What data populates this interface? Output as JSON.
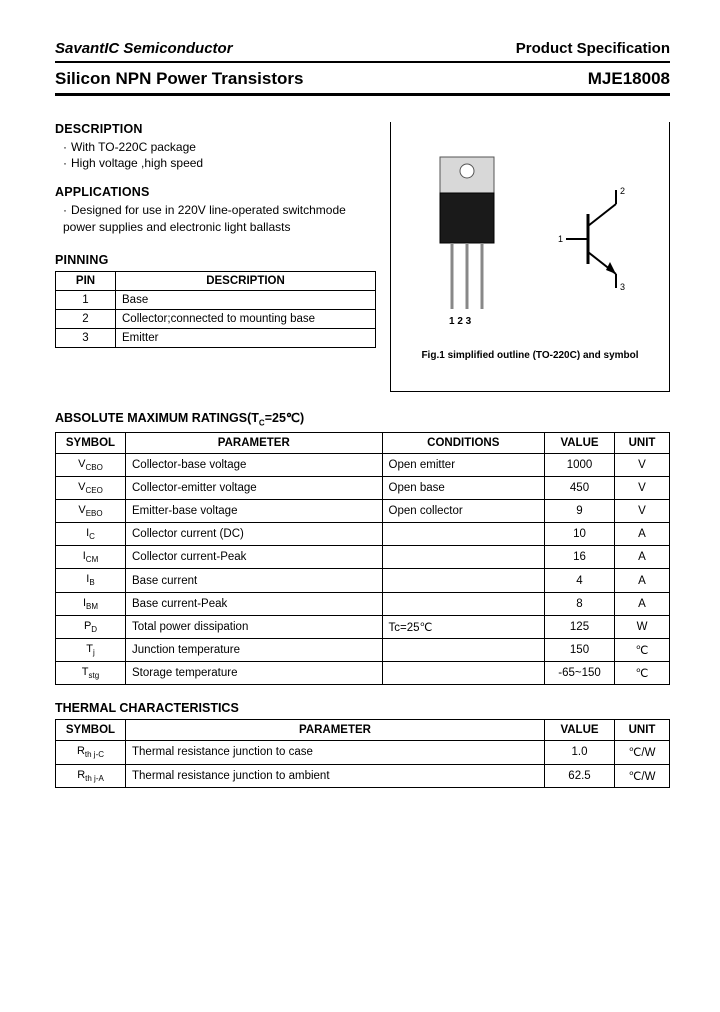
{
  "header": {
    "company": "SavantIC Semiconductor",
    "product_spec": "Product Specification",
    "title": "Silicon NPN Power Transistors",
    "part_number": "MJE18008"
  },
  "description": {
    "heading": "DESCRIPTION",
    "lines": [
      "With TO-220C package",
      "High voltage ,high speed"
    ]
  },
  "applications": {
    "heading": "APPLICATIONS",
    "text": "Designed for use in 220V line-operated switchmode power supplies and electronic light ballasts"
  },
  "pinning": {
    "heading": "PINNING",
    "col_pin": "PIN",
    "col_desc": "DESCRIPTION",
    "rows": [
      {
        "pin": "1",
        "desc": "Base"
      },
      {
        "pin": "2",
        "desc": "Collector;connected to mounting base"
      },
      {
        "pin": "3",
        "desc": "Emitter"
      }
    ]
  },
  "figure": {
    "pins_label": "1  2  3",
    "caption": "Fig.1 simplified outline (TO-220C) and symbol",
    "symbol_pins": {
      "p1": "1",
      "p2": "2",
      "p3": "3"
    }
  },
  "ratings": {
    "heading": "ABSOLUTE MAXIMUM RATINGS(T",
    "heading_sub": "C",
    "heading_tail": "=25℃)",
    "cols": {
      "symbol": "SYMBOL",
      "param": "PARAMETER",
      "cond": "CONDITIONS",
      "value": "VALUE",
      "unit": "UNIT"
    },
    "rows": [
      {
        "sym": "V",
        "sub": "CBO",
        "param": "Collector-base voltage",
        "cond": "Open emitter",
        "value": "1000",
        "unit": "V"
      },
      {
        "sym": "V",
        "sub": "CEO",
        "param": "Collector-emitter voltage",
        "cond": "Open base",
        "value": "450",
        "unit": "V"
      },
      {
        "sym": "V",
        "sub": "EBO",
        "param": "Emitter-base voltage",
        "cond": "Open collector",
        "value": "9",
        "unit": "V"
      },
      {
        "sym": "I",
        "sub": "C",
        "param": "Collector current (DC)",
        "cond": "",
        "value": "10",
        "unit": "A"
      },
      {
        "sym": "I",
        "sub": "CM",
        "param": "Collector current-Peak",
        "cond": "",
        "value": "16",
        "unit": "A"
      },
      {
        "sym": "I",
        "sub": "B",
        "param": "Base current",
        "cond": "",
        "value": "4",
        "unit": "A"
      },
      {
        "sym": "I",
        "sub": "BM",
        "param": "Base current-Peak",
        "cond": "",
        "value": "8",
        "unit": "A"
      },
      {
        "sym": "P",
        "sub": "D",
        "param": "Total power dissipation",
        "cond": "Tc=25℃",
        "value": "125",
        "unit": "W"
      },
      {
        "sym": "T",
        "sub": "j",
        "param": "Junction temperature",
        "cond": "",
        "value": "150",
        "unit": "℃"
      },
      {
        "sym": "T",
        "sub": "stg",
        "param": "Storage temperature",
        "cond": "",
        "value": "-65~150",
        "unit": "℃"
      }
    ]
  },
  "thermal": {
    "heading": "THERMAL CHARACTERISTICS",
    "cols": {
      "symbol": "SYMBOL",
      "param": "PARAMETER",
      "value": "VALUE",
      "unit": "UNIT"
    },
    "rows": [
      {
        "sym": "R",
        "sub": "th j-C",
        "param": "Thermal resistance junction to case",
        "value": "1.0",
        "unit": "℃/W"
      },
      {
        "sym": "R",
        "sub": "th j-A",
        "param": "Thermal resistance junction to ambient",
        "value": "62.5",
        "unit": "℃/W"
      }
    ]
  },
  "colors": {
    "text": "#000000",
    "bg": "#ffffff",
    "border": "#000000"
  }
}
